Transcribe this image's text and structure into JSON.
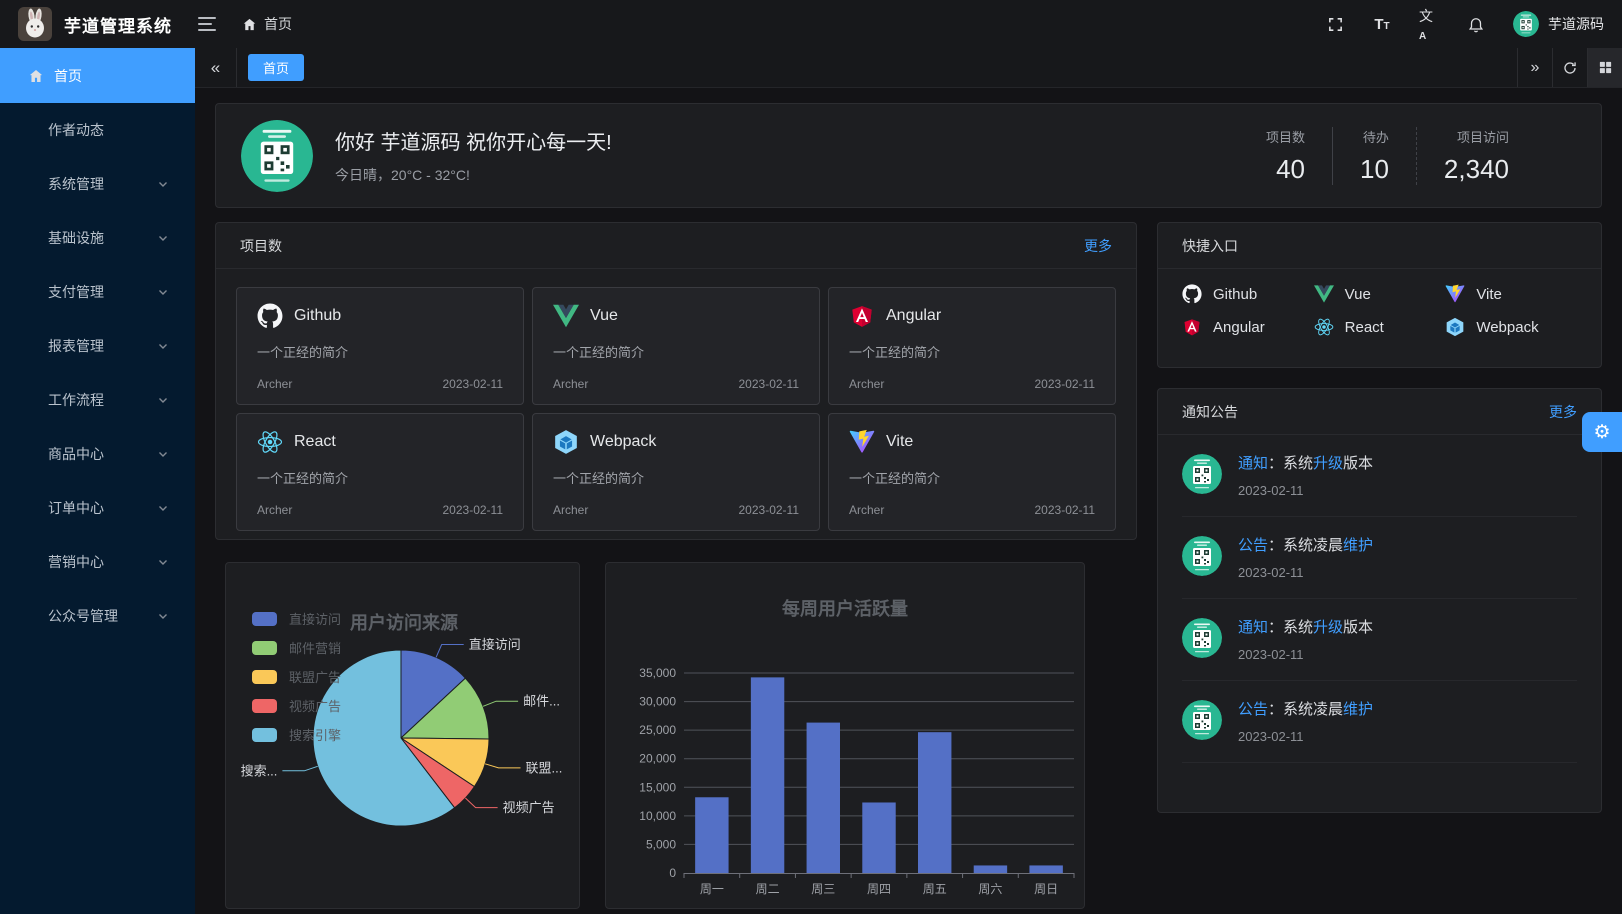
{
  "app": {
    "title": "芋道管理系统",
    "user": "芋道源码"
  },
  "topbar": {
    "breadcrumb": "首页",
    "icons": [
      "hamburger-icon",
      "home-icon",
      "fullscreen-icon",
      "font-size-icon",
      "translate-icon",
      "bell-icon",
      "user-avatar"
    ]
  },
  "sidebar": {
    "active_label": "首页",
    "items": [
      {
        "label": "作者动态",
        "chevron": false
      },
      {
        "label": "系统管理",
        "chevron": true
      },
      {
        "label": "基础设施",
        "chevron": true
      },
      {
        "label": "支付管理",
        "chevron": true
      },
      {
        "label": "报表管理",
        "chevron": true
      },
      {
        "label": "工作流程",
        "chevron": true
      },
      {
        "label": "商品中心",
        "chevron": true
      },
      {
        "label": "订单中心",
        "chevron": true
      },
      {
        "label": "营销中心",
        "chevron": true
      },
      {
        "label": "公众号管理",
        "chevron": true
      }
    ]
  },
  "tabs": {
    "active": "首页",
    "controls": [
      "collapse-left-icon",
      "chevrons-right-icon",
      "refresh-icon",
      "grid-icon"
    ]
  },
  "welcome": {
    "title": "你好 芋道源码 祝你开心每一天!",
    "subtitle": "今日晴，20°C - 32°C!",
    "stats": [
      {
        "label": "项目数",
        "value": "40"
      },
      {
        "label": "待办",
        "value": "10"
      },
      {
        "label": "项目访问",
        "value": "2,340"
      }
    ]
  },
  "projects": {
    "header": "项目数",
    "more": "更多",
    "items": [
      {
        "name": "Github",
        "icon": "github-icon",
        "desc": "一个正经的简介",
        "author": "Archer",
        "date": "2023-02-11"
      },
      {
        "name": "Vue",
        "icon": "vue-icon",
        "desc": "一个正经的简介",
        "author": "Archer",
        "date": "2023-02-11"
      },
      {
        "name": "Angular",
        "icon": "angular-icon",
        "desc": "一个正经的简介",
        "author": "Archer",
        "date": "2023-02-11"
      },
      {
        "name": "React",
        "icon": "react-icon",
        "desc": "一个正经的简介",
        "author": "Archer",
        "date": "2023-02-11"
      },
      {
        "name": "Webpack",
        "icon": "webpack-icon",
        "desc": "一个正经的简介",
        "author": "Archer",
        "date": "2023-02-11"
      },
      {
        "name": "Vite",
        "icon": "vite-icon",
        "desc": "一个正经的简介",
        "author": "Archer",
        "date": "2023-02-11"
      }
    ]
  },
  "shortcuts": {
    "header": "快捷入口",
    "items": [
      {
        "name": "Github",
        "icon": "github-icon"
      },
      {
        "name": "Vue",
        "icon": "vue-icon"
      },
      {
        "name": "Vite",
        "icon": "vite-icon"
      },
      {
        "name": "Angular",
        "icon": "angular-icon"
      },
      {
        "name": "React",
        "icon": "react-icon"
      },
      {
        "name": "Webpack",
        "icon": "webpack-icon"
      }
    ]
  },
  "notices": {
    "header": "通知公告",
    "more": "更多",
    "items": [
      {
        "segments": [
          {
            "t": "通知"
          },
          {
            "t": "：系统"
          },
          {
            "t": "升级"
          },
          {
            "t": "版本"
          }
        ],
        "date": "2023-02-11"
      },
      {
        "segments": [
          {
            "t": "公告"
          },
          {
            "t": "：系统凌晨"
          },
          {
            "t": "维护"
          },
          {
            "t": ""
          }
        ],
        "date": "2023-02-11"
      },
      {
        "segments": [
          {
            "t": "通知"
          },
          {
            "t": "：系统"
          },
          {
            "t": "升级"
          },
          {
            "t": "版本"
          }
        ],
        "date": "2023-02-11"
      },
      {
        "segments": [
          {
            "t": "公告"
          },
          {
            "t": "：系统凌晨"
          },
          {
            "t": "维护"
          },
          {
            "t": ""
          }
        ],
        "date": "2023-02-11"
      }
    ]
  },
  "chart_data": [
    {
      "type": "pie",
      "title": "用户访问来源",
      "legend_position": "left-vertical",
      "series": [
        {
          "name": "直接访问",
          "value": 335,
          "color": "#5470c6",
          "label": "直接访问"
        },
        {
          "name": "邮件营销",
          "value": 310,
          "color": "#91cc75",
          "label": "邮件..."
        },
        {
          "name": "联盟广告",
          "value": 234,
          "color": "#fac858",
          "label": "联盟..."
        },
        {
          "name": "视频广告",
          "value": 135,
          "color": "#ee6666",
          "label": "视频广告"
        },
        {
          "name": "搜索引擎",
          "value": 1548,
          "color": "#73c0de",
          "label": "搜索..."
        }
      ]
    },
    {
      "type": "bar",
      "title": "每周用户活跃量",
      "categories": [
        "周一",
        "周二",
        "周三",
        "周四",
        "周五",
        "周六",
        "周日"
      ],
      "values": [
        13253,
        34235,
        26321,
        12340,
        24643,
        1322,
        1324
      ],
      "ylim": [
        0,
        35000
      ],
      "ytick_step": 5000,
      "yticks": [
        "0",
        "5,000",
        "10,000",
        "15,000",
        "20,000",
        "25,000",
        "30,000",
        "35,000"
      ],
      "bar_color": "#5470c6",
      "grid": true,
      "legend_position": "none"
    }
  ],
  "colors": {
    "primary": "#409eff",
    "sidebar_bg": "#041a2f",
    "card_bg": "#1d1e21",
    "avatar_green": "#29b792"
  },
  "gear_fab": "settings-gear-icon"
}
